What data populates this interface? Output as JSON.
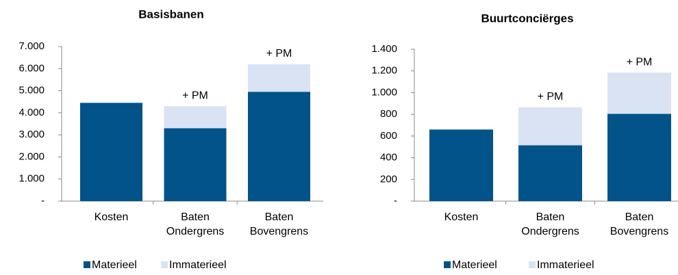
{
  "chart_data": [
    {
      "type": "bar",
      "stacked": true,
      "title": "Basisbanen",
      "categories": [
        "Kosten",
        "Baten Ondergrens",
        "Baten Bovengrens"
      ],
      "series": [
        {
          "name": "Materieel",
          "color": "#02538a",
          "values": [
            4450,
            3300,
            4950
          ]
        },
        {
          "name": "Immaterieel",
          "color": "#dae3f3",
          "values": [
            0,
            1000,
            1250
          ]
        }
      ],
      "annotations": [
        {
          "category": 1,
          "text": "+ PM"
        },
        {
          "category": 2,
          "text": "+ PM"
        }
      ],
      "ylim": [
        0,
        7000
      ],
      "yticks": [
        {
          "value": 0,
          "label": "-"
        },
        {
          "value": 1000,
          "label": "1.000"
        },
        {
          "value": 2000,
          "label": "2.000"
        },
        {
          "value": 3000,
          "label": "3.000"
        },
        {
          "value": 4000,
          "label": "4.000"
        },
        {
          "value": 5000,
          "label": "5.000"
        },
        {
          "value": 6000,
          "label": "6.000"
        },
        {
          "value": 7000,
          "label": "7.000"
        }
      ],
      "grid": false,
      "legend": "bottom"
    },
    {
      "type": "bar",
      "stacked": true,
      "title": "Buurtconciërges",
      "categories": [
        "Kosten",
        "Baten Ondergrens",
        "Baten Bovengrens"
      ],
      "series": [
        {
          "name": "Materieel",
          "color": "#02538a",
          "values": [
            660,
            515,
            805
          ]
        },
        {
          "name": "Immaterieel",
          "color": "#dae3f3",
          "values": [
            0,
            350,
            380
          ]
        }
      ],
      "annotations": [
        {
          "category": 1,
          "text": "+ PM"
        },
        {
          "category": 2,
          "text": "+ PM"
        }
      ],
      "ylim": [
        0,
        1400
      ],
      "yticks": [
        {
          "value": 0,
          "label": "-"
        },
        200,
        400,
        600,
        800,
        {
          "value": 1000,
          "label": "1.000"
        },
        {
          "value": 1200,
          "label": "1.200"
        },
        {
          "value": 1400,
          "label": "1.400"
        }
      ],
      "grid": false,
      "legend": "bottom"
    }
  ]
}
